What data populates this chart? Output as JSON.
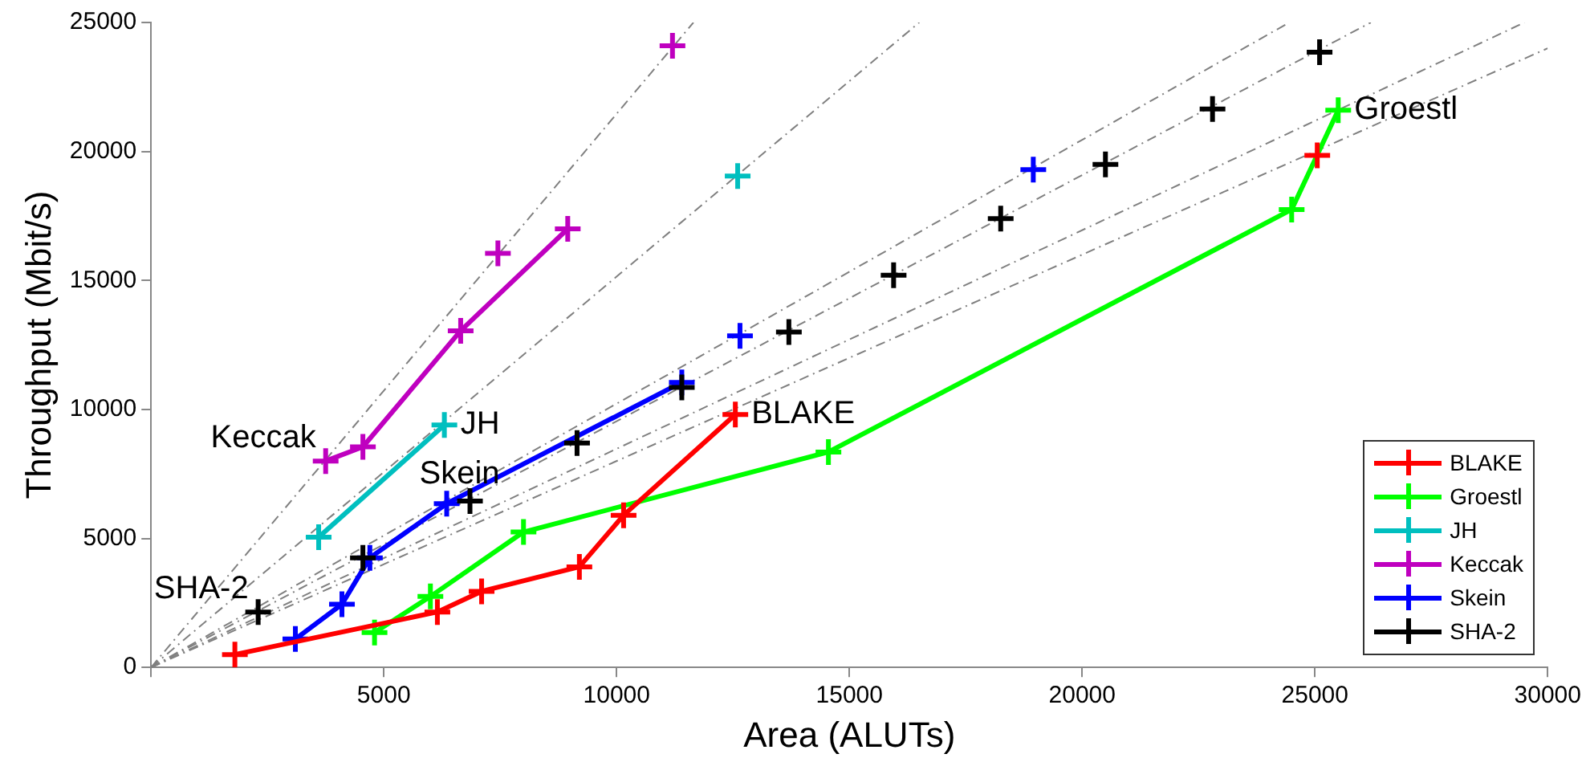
{
  "chart_data": {
    "type": "line",
    "xlabel": "Area (ALUTs)",
    "ylabel": "Throughput (Mbit/s)",
    "xlim": [
      0,
      30000
    ],
    "xticks": [
      {
        "value": 0,
        "label": null
      },
      5000,
      10000,
      15000,
      20000,
      25000,
      30000
    ],
    "ylim": [
      0,
      25000
    ],
    "yticks": [
      0,
      5000,
      10000,
      15000,
      20000,
      25000
    ],
    "grid": false,
    "legend": "bottom right",
    "marker": "cross",
    "line_style": "solid",
    "series": [
      {
        "name": "BLAKE",
        "color": "#ff0000",
        "x": [
          1800,
          6150,
          7100,
          9200,
          10150,
          12550
        ],
        "values": [
          500,
          2150,
          2950,
          3900,
          5900,
          9800
        ]
      },
      {
        "name": "Groestl",
        "color": "#00ff00",
        "x": [
          4800,
          6000,
          8000,
          14550,
          24500,
          25500
        ],
        "values": [
          1350,
          2750,
          5250,
          8350,
          17750,
          21600
        ]
      },
      {
        "name": "JH",
        "color": "#00bfbf",
        "x": [
          3600,
          6300
        ],
        "values": [
          5050,
          9400
        ]
      },
      {
        "name": "Keccak",
        "color": "#bf00bf",
        "x": [
          3750,
          4550,
          6650,
          8950
        ],
        "values": [
          8000,
          8550,
          13050,
          17000
        ]
      },
      {
        "name": "Skein",
        "color": "#0000ff",
        "x": [
          3100,
          4100,
          4700,
          6350,
          11400
        ],
        "values": [
          1100,
          2450,
          4250,
          6350,
          11050
        ]
      },
      {
        "name": "SHA-2",
        "color": "#000000",
        "type": "scatter",
        "x": [
          2300,
          4550,
          6850,
          9150,
          11400,
          13700,
          15950,
          18250,
          20500,
          22800,
          25100
        ],
        "values": [
          2150,
          4250,
          6450,
          8700,
          10850,
          13000,
          15200,
          17400,
          19500,
          21650,
          23850
        ]
      },
      {
        "color": "#ff0000",
        "type": "scatter",
        "x": [
          25050
        ],
        "values": [
          19850
        ]
      },
      {
        "color": "#00bfbf",
        "type": "scatter",
        "x": [
          12600
        ],
        "values": [
          19050
        ]
      },
      {
        "color": "#bf00bf",
        "type": "scatter",
        "x": [
          7450,
          11200
        ],
        "values": [
          16050,
          24100
        ]
      },
      {
        "color": "#0000ff",
        "type": "scatter",
        "x": [
          12650,
          18950
        ],
        "values": [
          12850,
          19300
        ]
      },
      {
        "color": "#808080",
        "marker": "none",
        "line_style": "dashed",
        "x": [
          0,
          11650
        ],
        "values": [
          0,
          25000
        ]
      },
      {
        "color": "#808080",
        "marker": "none",
        "line_style": "dashed",
        "x": [
          0,
          16500
        ],
        "values": [
          0,
          25000
        ]
      },
      {
        "color": "#808080",
        "marker": "none",
        "line_style": "dashed",
        "x": [
          0,
          24450
        ],
        "values": [
          0,
          25000
        ]
      },
      {
        "color": "#808080",
        "marker": "none",
        "line_style": "dashed",
        "x": [
          0,
          26200
        ],
        "values": [
          0,
          25000
        ]
      },
      {
        "color": "#808080",
        "marker": "none",
        "line_style": "dashed",
        "x": [
          0,
          29500
        ],
        "values": [
          0,
          25000
        ]
      },
      {
        "color": "#808080",
        "marker": "none",
        "line_style": "dashed",
        "x": [
          0,
          30000
        ],
        "values": [
          0,
          24000
        ]
      }
    ],
    "annotations": [
      {
        "text": "Keccak",
        "x": 3750,
        "y": 8000
      },
      {
        "text": "JH",
        "x": 6300,
        "y": 9400
      },
      {
        "text": "Skein",
        "x": 6350,
        "y": 6350
      },
      {
        "text": "SHA-2",
        "x": 2300,
        "y": 2150
      },
      {
        "text": "BLAKE",
        "x": 12550,
        "y": 9800
      },
      {
        "text": "Groestl",
        "x": 25500,
        "y": 21600
      }
    ]
  }
}
